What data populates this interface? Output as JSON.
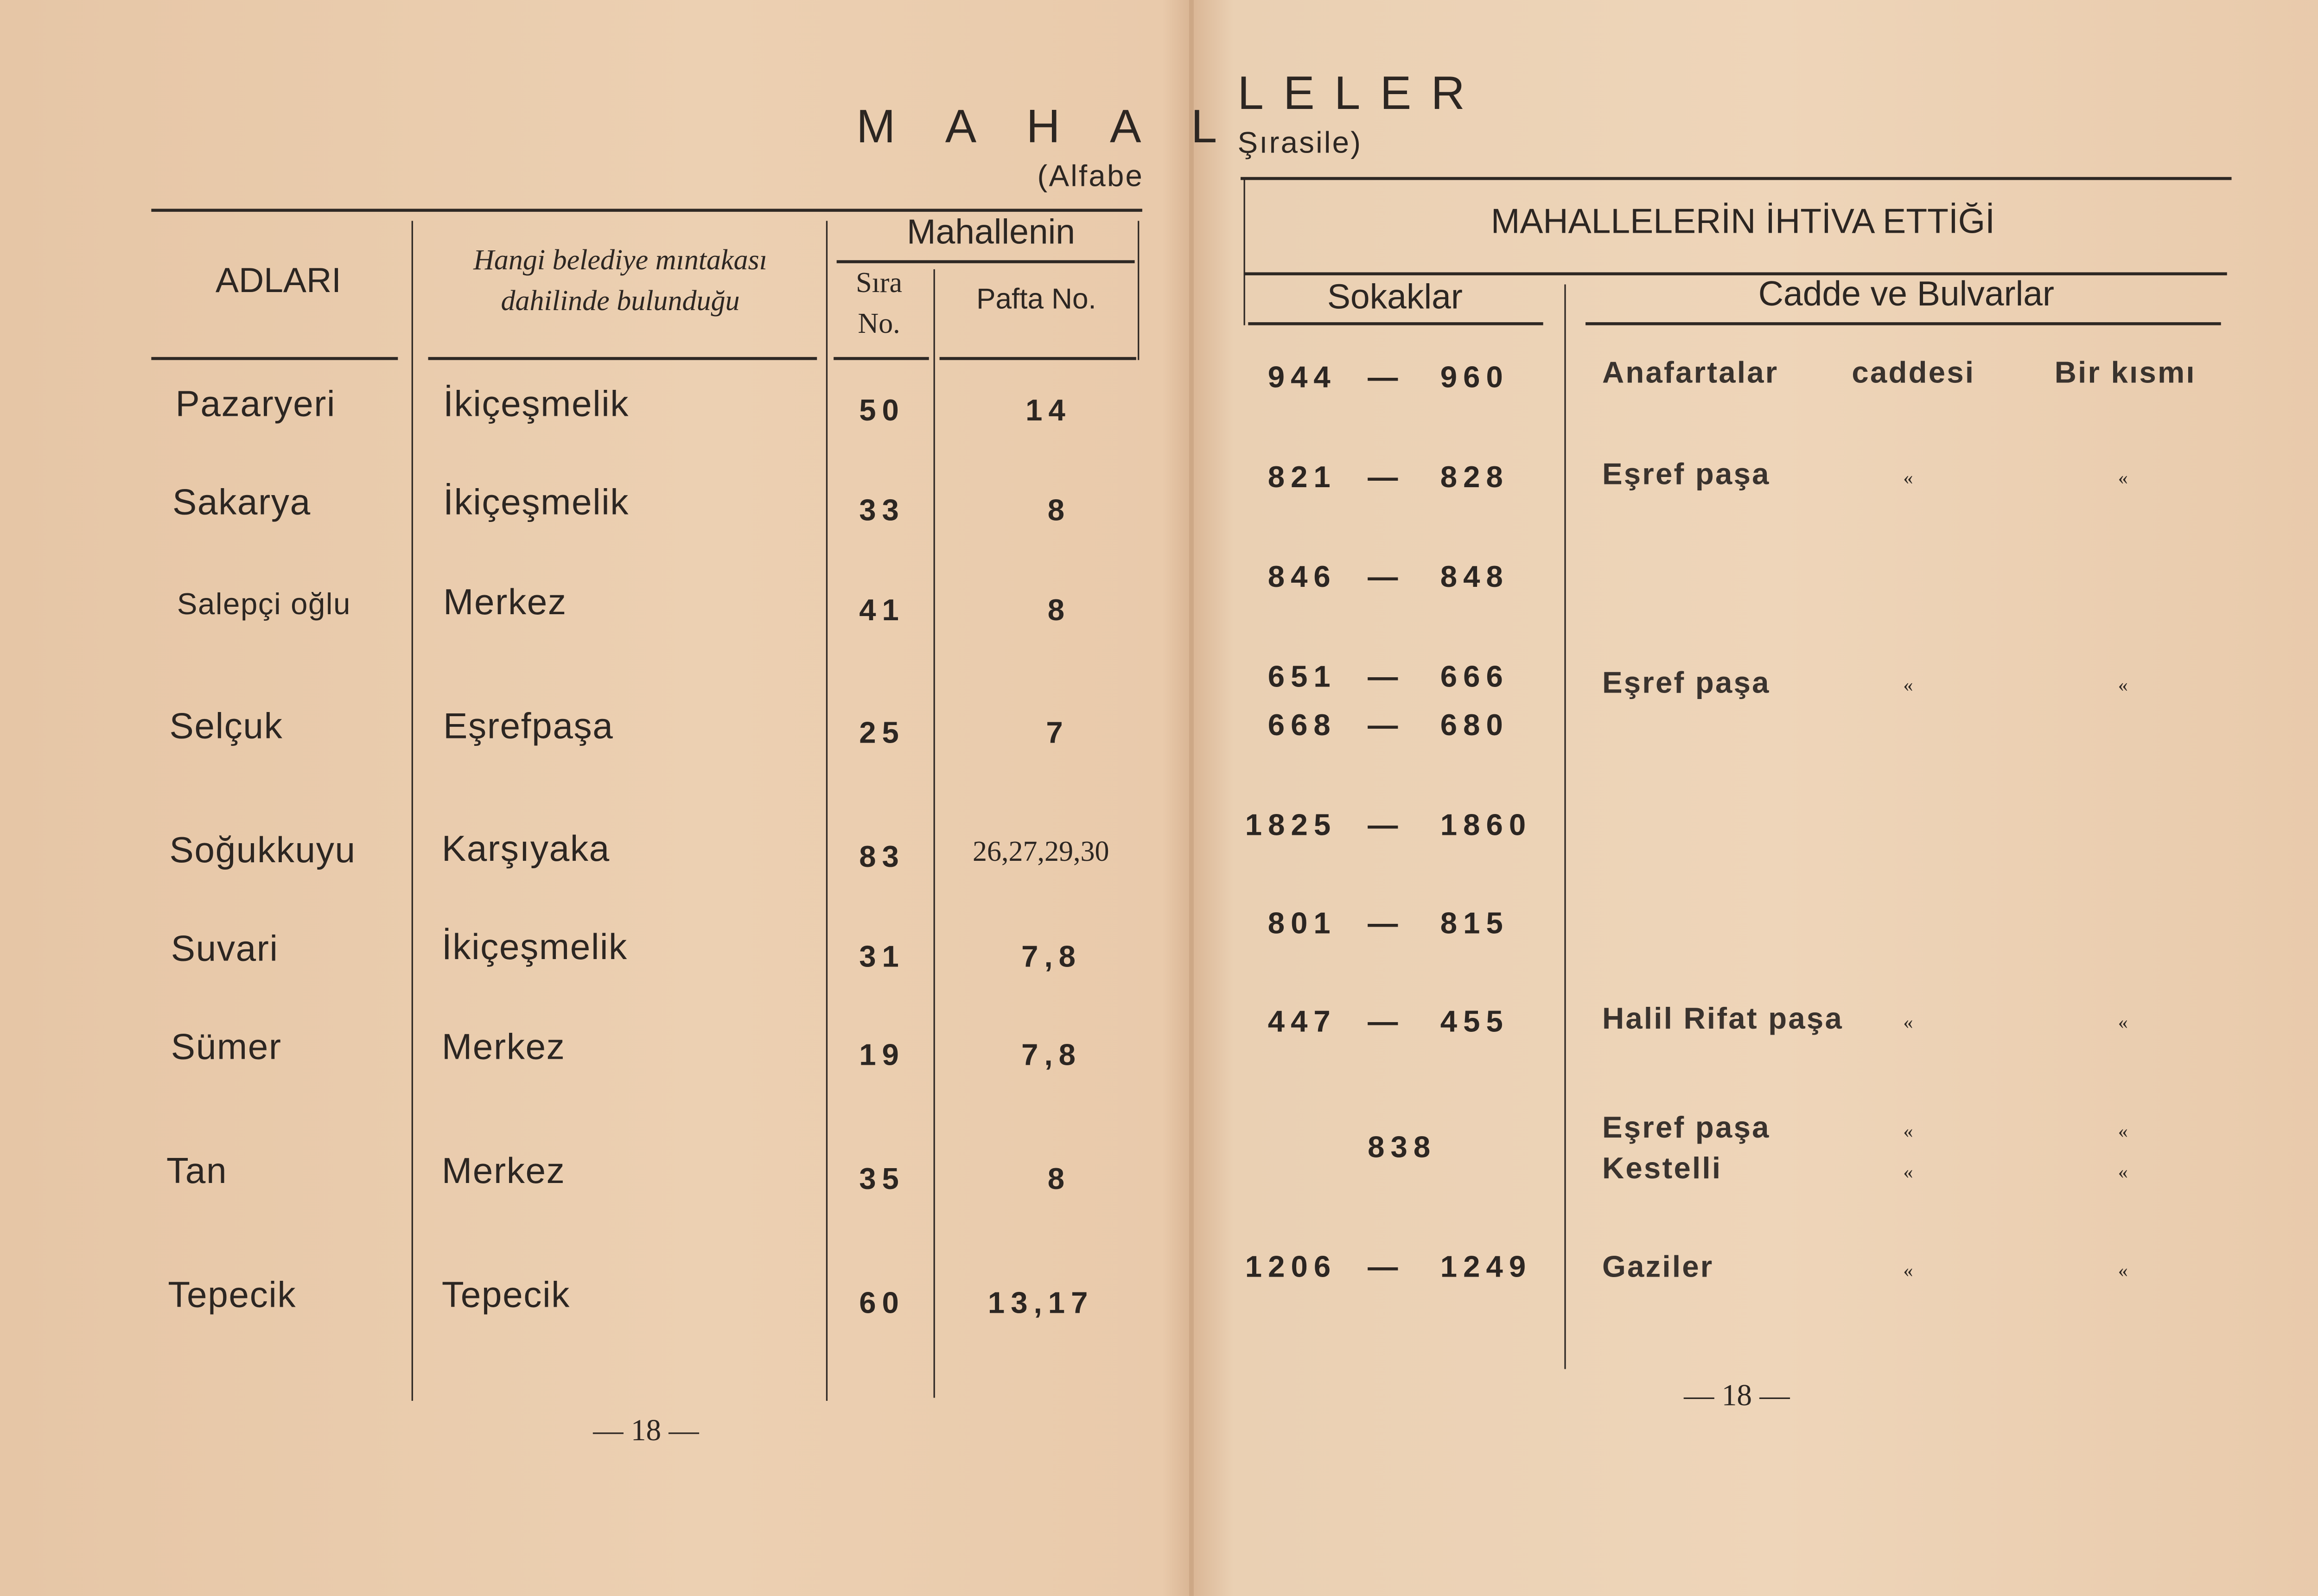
{
  "left_page": {
    "title_part": "M A H A L",
    "subtitle_part": "(Alfabe",
    "headers": {
      "names": "ADLARI",
      "district_line1": "Hangi belediye mıntakası",
      "district_line2": "dahilinde bulunduğu",
      "group": "Mahallenin",
      "order_line1": "Sıra",
      "order_line2": "No.",
      "sheet": "Pafta No."
    },
    "rows": [
      {
        "name": "Pazaryeri",
        "district": "İkiçeşmelik",
        "order": "50",
        "sheet": "14"
      },
      {
        "name": "Sakarya",
        "district": "İkiçeşmelik",
        "order": "33",
        "sheet": "8"
      },
      {
        "name": "Salepçi oğlu",
        "district": "Merkez",
        "order": "41",
        "sheet": "8"
      },
      {
        "name": "Selçuk",
        "district": "Eşrefpaşa",
        "order": "25",
        "sheet": "7"
      },
      {
        "name": "Soğukkuyu",
        "district": "Karşıyaka",
        "order": "83",
        "sheet": "26,27,29,30"
      },
      {
        "name": "Suvari",
        "district": "İkiçeşmelik",
        "order": "31",
        "sheet": "7,8"
      },
      {
        "name": "Sümer",
        "district": "Merkez",
        "order": "19",
        "sheet": "7,8"
      },
      {
        "name": "Tan",
        "district": "Merkez",
        "order": "35",
        "sheet": "8"
      },
      {
        "name": "Tepecik",
        "district": "Tepecik",
        "order": "60",
        "sheet": "13,17"
      }
    ],
    "page_number": "— 18 —"
  },
  "right_page": {
    "title_part": "LELER",
    "subtitle_part": "Şırasile)",
    "headers": {
      "group": "MAHALLELERİN İHTİVA ETTİĞİ",
      "streets": "Sokaklar",
      "avenues": "Cadde ve Bulvarlar"
    },
    "streets": [
      {
        "from": "944",
        "to": "960"
      },
      {
        "from": "821",
        "to": "828"
      },
      {
        "from": "846",
        "to": "848"
      },
      {
        "from": "651",
        "to": "666"
      },
      {
        "from": "668",
        "to": "680"
      },
      {
        "from": "1825",
        "to": "1860"
      },
      {
        "from": "801",
        "to": "815"
      },
      {
        "from": "447",
        "to": "455"
      },
      {
        "single": "838"
      },
      {
        "from": "1206",
        "to": "1249"
      }
    ],
    "dash": "—",
    "avenues": [
      {
        "name": "Anafartalar",
        "col2": "caddesi",
        "col3": "Bir kısmı"
      },
      {
        "name": "Eşref paşa",
        "col2": "«",
        "col3": "«"
      },
      {
        "name": "Eşref paşa",
        "col2": "«",
        "col3": "«"
      },
      {
        "name": "Halil Rifat paşa",
        "col2": "«",
        "col3": "«"
      },
      {
        "name": "Eşref paşa",
        "col2": "«",
        "col3": "«"
      },
      {
        "name": "Kestelli",
        "col2": "«",
        "col3": "«"
      },
      {
        "name": "Gaziler",
        "col2": "«",
        "col3": "«"
      }
    ],
    "page_number": "— 18 —"
  }
}
